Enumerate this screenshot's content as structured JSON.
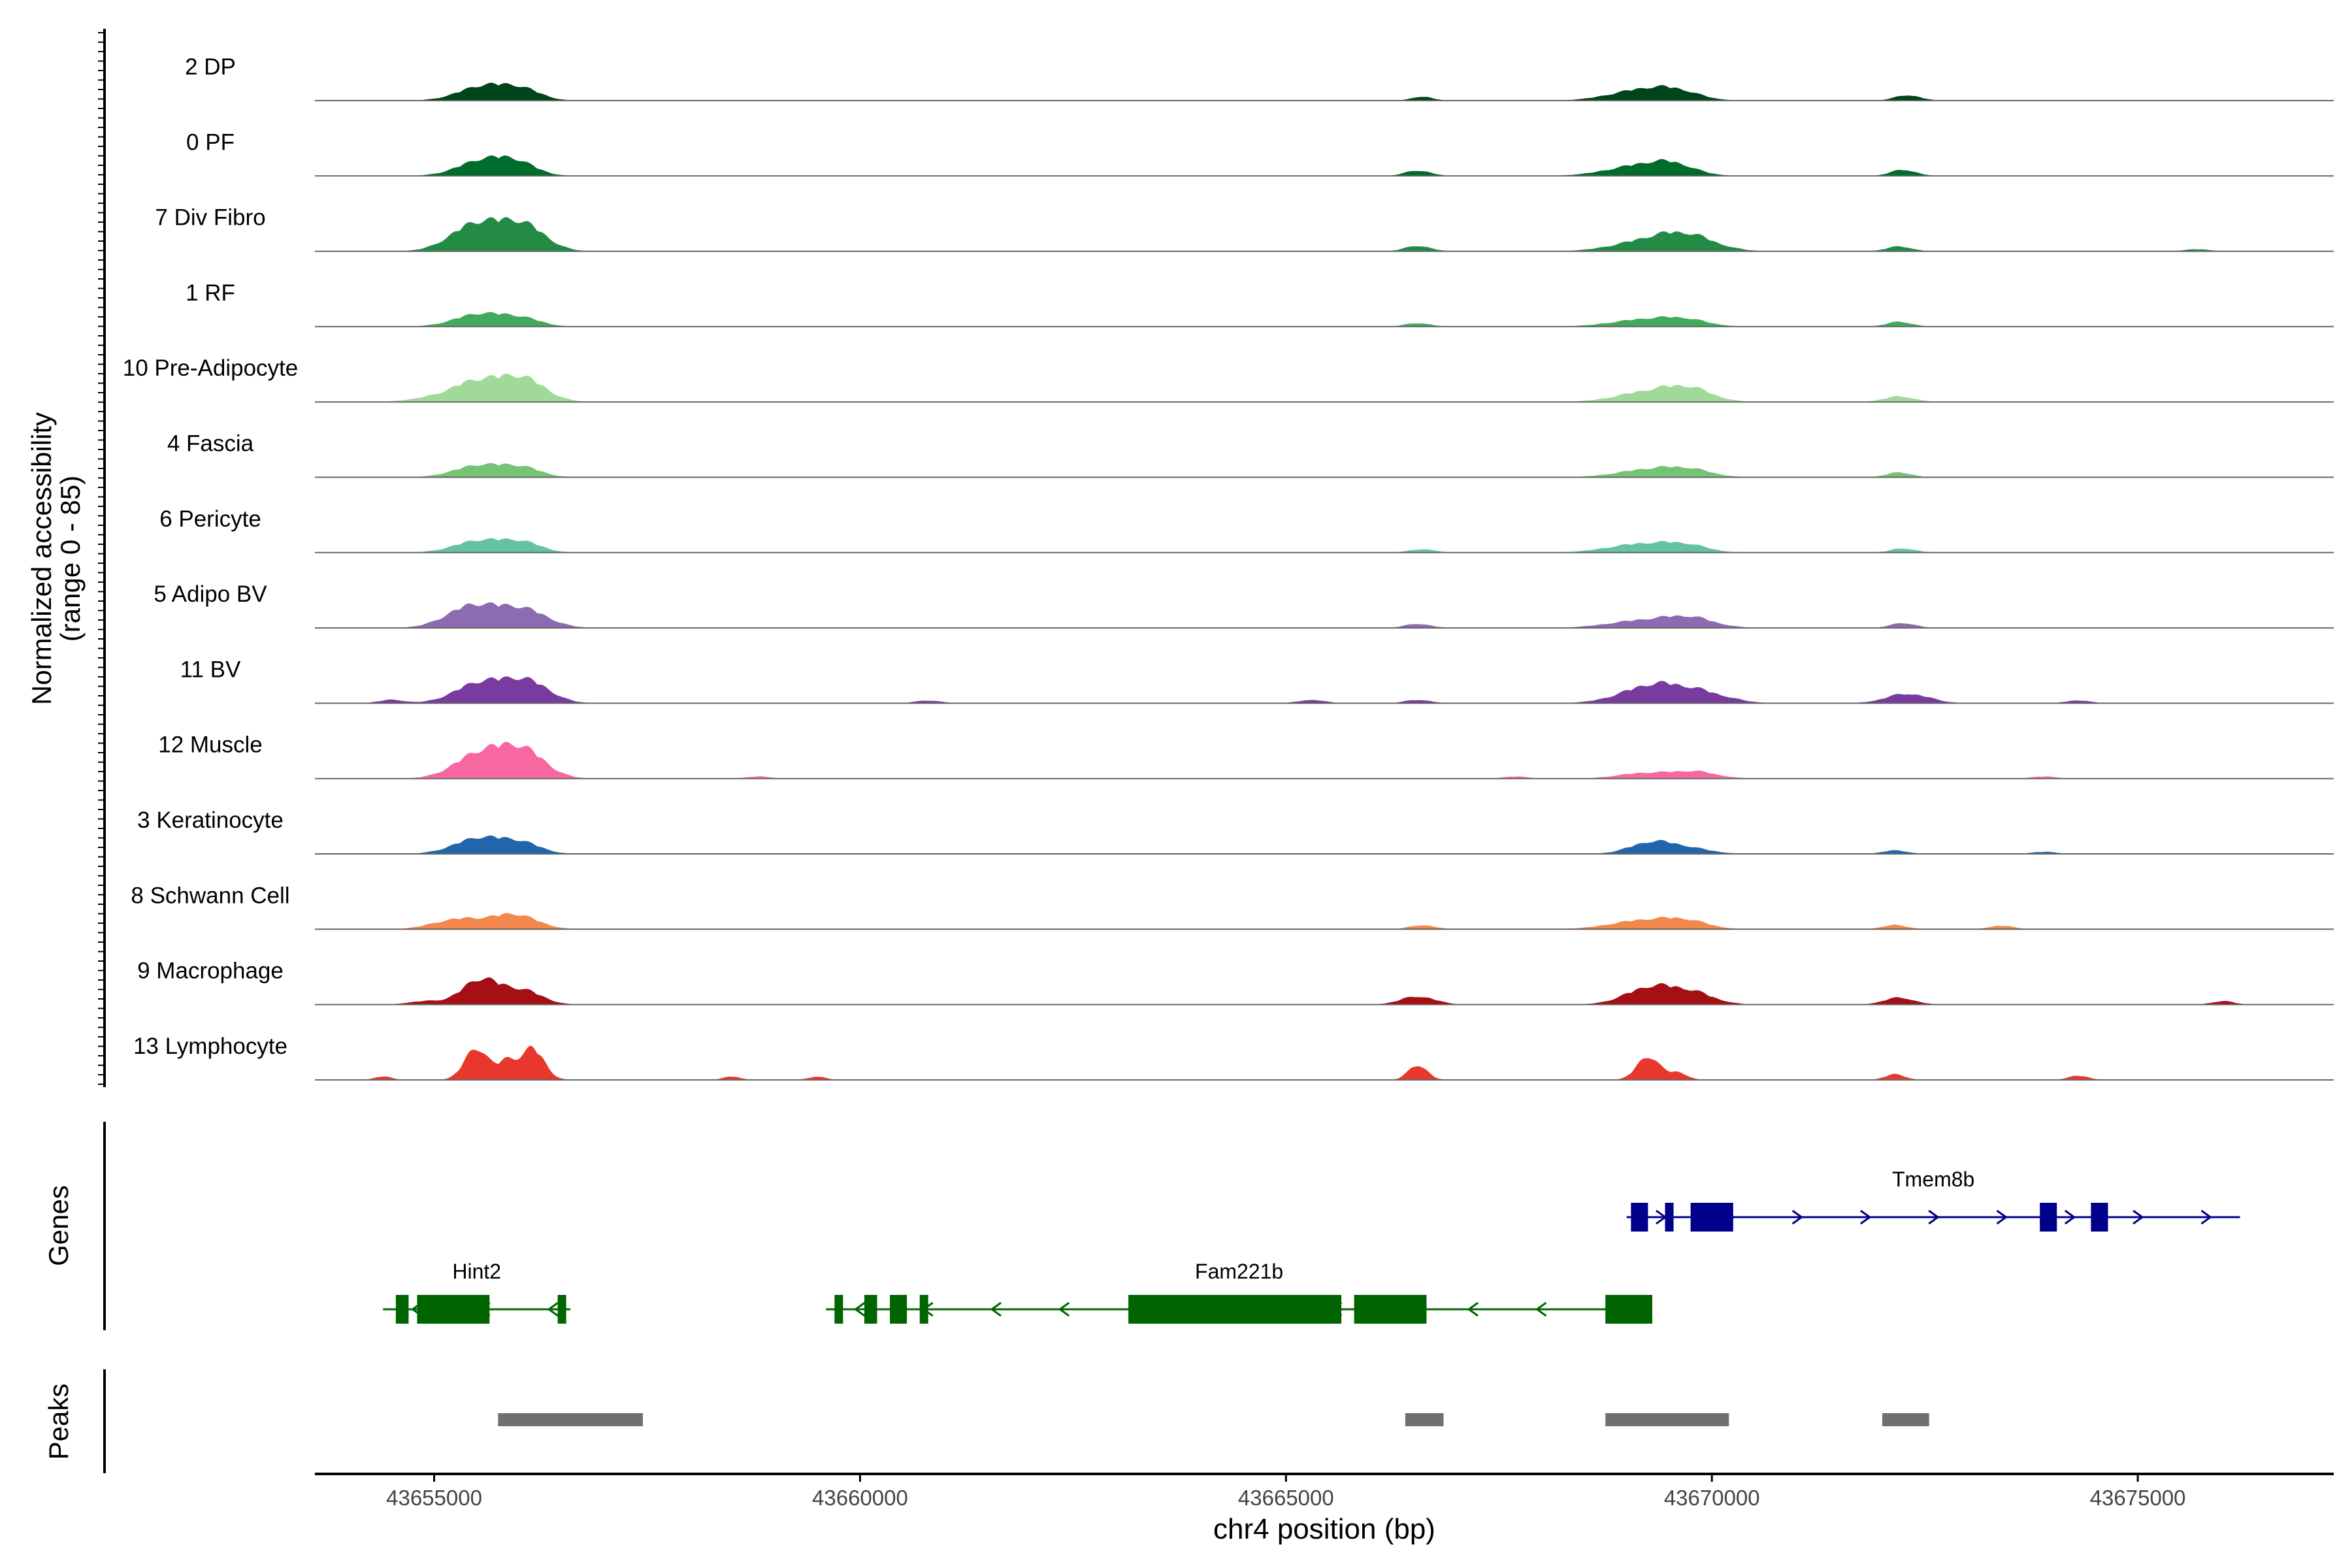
{
  "chart_data": {
    "type": "area",
    "title": "",
    "y_axis_label_line1": "Normalized accessibility",
    "y_axis_label_line2": "(range 0 - 85)",
    "xlabel": "chr4 position (bp)",
    "xlim": [
      43653600,
      43677300
    ],
    "ylim": [
      0,
      85
    ],
    "x_ticks": [
      43655000,
      43660000,
      43665000,
      43670000,
      43675000
    ],
    "x_tick_labels": [
      "43655000",
      "43660000",
      "43665000",
      "43670000",
      "43675000"
    ],
    "tracks": [
      {
        "label": "2 DP",
        "color": "#00441b",
        "peaks": [
          [
            43655600,
            22,
            300
          ],
          [
            43656050,
            13,
            220
          ],
          [
            43666600,
            6,
            120
          ],
          [
            43669200,
            16,
            380
          ],
          [
            43669600,
            9,
            260
          ],
          [
            43672300,
            8,
            150
          ]
        ]
      },
      {
        "label": "0 PF",
        "color": "#006d2c",
        "peaks": [
          [
            43655600,
            24,
            300
          ],
          [
            43656000,
            14,
            220
          ],
          [
            43666550,
            8,
            150
          ],
          [
            43669200,
            16,
            400
          ],
          [
            43669550,
            10,
            240
          ],
          [
            43672250,
            9,
            150
          ]
        ]
      },
      {
        "label": "7 Div Fibro",
        "color": "#238b45",
        "peaks": [
          [
            43655500,
            40,
            300
          ],
          [
            43656050,
            36,
            260
          ],
          [
            43666550,
            8,
            150
          ],
          [
            43669200,
            13,
            380
          ],
          [
            43669700,
            22,
            330
          ],
          [
            43672200,
            7,
            150
          ],
          [
            43675700,
            3,
            150
          ]
        ]
      },
      {
        "label": "1 RF",
        "color": "#41ab5d",
        "peaks": [
          [
            43655550,
            19,
            300
          ],
          [
            43656050,
            10,
            220
          ],
          [
            43666550,
            5,
            150
          ],
          [
            43669250,
            11,
            400
          ],
          [
            43669700,
            7,
            250
          ],
          [
            43672200,
            7,
            150
          ]
        ]
      },
      {
        "label": "10 Pre-Adipocyte",
        "color": "#a1d99b",
        "peaks": [
          [
            43655500,
            30,
            300
          ],
          [
            43656050,
            32,
            260
          ],
          [
            43654900,
            4,
            250
          ],
          [
            43669300,
            16,
            380
          ],
          [
            43669750,
            15,
            260
          ],
          [
            43672200,
            8,
            180
          ]
        ]
      },
      {
        "label": "4 Fascia",
        "color": "#74c476",
        "peaks": [
          [
            43655550,
            18,
            300
          ],
          [
            43656050,
            12,
            220
          ],
          [
            43669300,
            12,
            380
          ],
          [
            43669750,
            8,
            260
          ],
          [
            43672200,
            7,
            150
          ]
        ]
      },
      {
        "label": "6 Pericyte",
        "color": "#66c2a4",
        "peaks": [
          [
            43655550,
            18,
            300
          ],
          [
            43656050,
            13,
            220
          ],
          [
            43666600,
            5,
            150
          ],
          [
            43669200,
            13,
            400
          ],
          [
            43669700,
            8,
            250
          ],
          [
            43672250,
            6,
            150
          ]
        ]
      },
      {
        "label": "5 Adipo BV",
        "color": "#8c6bb1",
        "peaks": [
          [
            43655450,
            32,
            300
          ],
          [
            43656050,
            26,
            280
          ],
          [
            43666550,
            6,
            150
          ],
          [
            43669200,
            11,
            400
          ],
          [
            43669750,
            13,
            280
          ],
          [
            43672250,
            7,
            150
          ]
        ]
      },
      {
        "label": "11 BV",
        "color": "#7a3ba0",
        "peaks": [
          [
            43654500,
            5,
            150
          ],
          [
            43655550,
            30,
            300
          ],
          [
            43656100,
            30,
            260
          ],
          [
            43660800,
            4,
            150
          ],
          [
            43665300,
            5,
            150
          ],
          [
            43666550,
            5,
            150
          ],
          [
            43669350,
            28,
            380
          ],
          [
            43669950,
            10,
            300
          ],
          [
            43672300,
            14,
            250
          ],
          [
            43674300,
            4,
            150
          ]
        ]
      },
      {
        "label": "12 Muscle",
        "color": "#f768a1",
        "peaks": [
          [
            43655550,
            37,
            300
          ],
          [
            43656050,
            38,
            260
          ],
          [
            43658800,
            3,
            150
          ],
          [
            43667700,
            3,
            150
          ],
          [
            43669200,
            8,
            300
          ],
          [
            43669800,
            10,
            260
          ],
          [
            43673900,
            3,
            150
          ]
        ]
      },
      {
        "label": "3 Keratinocyte",
        "color": "#2166ac",
        "peaks": [
          [
            43655550,
            24,
            300
          ],
          [
            43656050,
            13,
            220
          ],
          [
            43669300,
            17,
            260
          ],
          [
            43669750,
            7,
            260
          ],
          [
            43672150,
            5,
            150
          ],
          [
            43673900,
            3,
            150
          ]
        ]
      },
      {
        "label": "8 Schwann Cell",
        "color": "#f4874b",
        "peaks": [
          [
            43655300,
            15,
            300
          ],
          [
            43655950,
            21,
            260
          ],
          [
            43666600,
            6,
            150
          ],
          [
            43669200,
            13,
            380
          ],
          [
            43669700,
            10,
            260
          ],
          [
            43672150,
            6,
            150
          ],
          [
            43673400,
            5,
            150
          ]
        ]
      },
      {
        "label": "9 Macrophage",
        "color": "#a50f15",
        "peaks": [
          [
            43655550,
            37,
            220
          ],
          [
            43656050,
            20,
            220
          ],
          [
            43654900,
            5,
            200
          ],
          [
            43666550,
            12,
            200
          ],
          [
            43669300,
            26,
            300
          ],
          [
            43669800,
            14,
            250
          ],
          [
            43672200,
            10,
            180
          ],
          [
            43676000,
            5,
            130
          ]
        ]
      },
      {
        "label": "13 Lymphocyte",
        "color": "#e8372c",
        "peaks": [
          [
            43655500,
            47,
            140
          ],
          [
            43655850,
            25,
            100
          ],
          [
            43656150,
            46,
            140
          ],
          [
            43666550,
            22,
            110
          ],
          [
            43669250,
            35,
            130
          ],
          [
            43669600,
            11,
            110
          ],
          [
            43654400,
            5,
            100
          ],
          [
            43658500,
            5,
            100
          ],
          [
            43659500,
            5,
            100
          ],
          [
            43672150,
            8,
            120
          ],
          [
            43674300,
            6,
            120
          ]
        ]
      }
    ],
    "genes_panel": {
      "label": "Genes",
      "genes": [
        {
          "name": "Tmem8b",
          "strand": "+",
          "start": 43669000,
          "end": 43676200,
          "lane": 1,
          "exons": [
            [
              43669050,
              43669250
            ],
            [
              43669450,
              43669550
            ],
            [
              43669750,
              43670250
            ],
            [
              43673850,
              43674050
            ],
            [
              43674450,
              43674650
            ]
          ]
        },
        {
          "name": "Hint2",
          "strand": "-",
          "start": 43654400,
          "end": 43656600,
          "lane": 2,
          "exons": [
            [
              43654550,
              43654700
            ],
            [
              43654800,
              43655650
            ],
            [
              43656450,
              43656550
            ]
          ]
        },
        {
          "name": "Fam221b",
          "strand": "-",
          "start": 43659600,
          "end": 43669300,
          "lane": 2,
          "exons": [
            [
              43659700,
              43659800
            ],
            [
              43660050,
              43660200
            ],
            [
              43660350,
              43660550
            ],
            [
              43660700,
              43660800
            ],
            [
              43663150,
              43665650
            ],
            [
              43665800,
              43666650
            ],
            [
              43668750,
              43669300
            ]
          ]
        }
      ]
    },
    "peaks_panel": {
      "label": "Peaks",
      "regions": [
        [
          43655750,
          43657450
        ],
        [
          43666400,
          43666850
        ],
        [
          43668750,
          43670200
        ],
        [
          43672000,
          43672550
        ]
      ]
    }
  }
}
